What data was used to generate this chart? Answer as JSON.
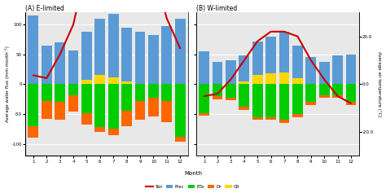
{
  "months": [
    1,
    2,
    3,
    4,
    5,
    6,
    7,
    8,
    9,
    10,
    11,
    12
  ],
  "panel_A": {
    "title": "(A) E-limited",
    "Prec": [
      115,
      65,
      70,
      57,
      88,
      110,
      118,
      95,
      88,
      82,
      97,
      110
    ],
    "ETa": [
      -70,
      -28,
      -30,
      -18,
      -48,
      -72,
      -75,
      -45,
      -28,
      -22,
      -28,
      -88
    ],
    "Dr": [
      -20,
      -30,
      -30,
      -28,
      -20,
      -8,
      -10,
      -25,
      -32,
      -32,
      -35,
      -8
    ],
    "CR": [
      0,
      0,
      0,
      0,
      8,
      15,
      12,
      5,
      0,
      0,
      0,
      0
    ],
    "Tair": [
      3,
      2,
      10,
      20,
      40,
      52,
      62,
      62,
      50,
      38,
      22,
      12
    ]
  },
  "panel_B": {
    "title": "(B) W-limited",
    "Prec": [
      55,
      38,
      40,
      48,
      72,
      80,
      88,
      65,
      45,
      38,
      48,
      50
    ],
    "ETa": [
      -48,
      -20,
      -22,
      -38,
      -55,
      -55,
      -60,
      -50,
      -30,
      -18,
      -18,
      -30
    ],
    "Dr": [
      -5,
      -5,
      -5,
      -5,
      -5,
      -5,
      -5,
      -5,
      -5,
      -5,
      -5,
      -5
    ],
    "CR": [
      0,
      0,
      0,
      5,
      15,
      18,
      20,
      10,
      0,
      0,
      0,
      0
    ],
    "Tair": [
      -5,
      -4,
      2,
      10,
      18,
      22,
      22,
      20,
      10,
      2,
      -5,
      -8
    ]
  },
  "colors": {
    "Prec": "#5B9BD5",
    "ETa": "#00CC00",
    "Dr": "#FF6600",
    "CR": "#FFD700",
    "Tair": "#CC0000"
  },
  "ylabel_left": "Average water flux (mm month⁻¹)",
  "ylabel_right": "Average air temperature (°C)",
  "xlabel": "Month",
  "ylim_left": [
    -120,
    120
  ],
  "tair_A_ylim": [
    -24,
    24
  ],
  "tair_B_ylim": [
    -30,
    30
  ],
  "background_color": "#E8E8E8"
}
